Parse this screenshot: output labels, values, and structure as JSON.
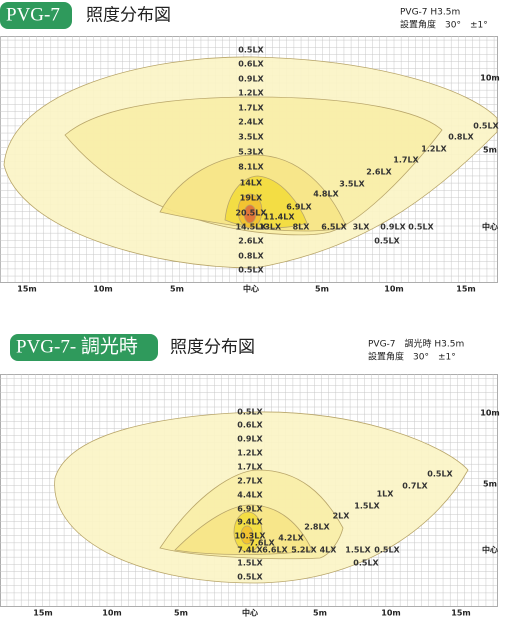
{
  "panels": [
    {
      "badge": "PVG-7",
      "title": "照度分布図",
      "spec": [
        "PVG-7 H3.5m",
        "設置角度　30°　±1°"
      ],
      "x_labels": [
        "15m",
        "10m",
        "5m",
        "中心",
        "5m",
        "10m",
        "15m"
      ],
      "y_labels": [
        "10m",
        "5m",
        "中心"
      ],
      "vertical_labels": [
        "0.5LX",
        "0.6LX",
        "0.9LX",
        "1.2LX",
        "1.7LX",
        "2.4LX",
        "3.5LX",
        "5.3LX",
        "8.1LX",
        "14LX",
        "19LX",
        "20.5LX",
        "14.5LX",
        "2.6LX",
        "0.8LX",
        "0.5LX"
      ],
      "horizontal_labels": [
        "13LX",
        "8LX",
        "6.5LX",
        "3LX",
        "0.9LX",
        "0.5LX",
        "0.5LX"
      ],
      "diagonal_labels": [
        "0.5LX",
        "0.8LX",
        "1.2LX",
        "1.7LX",
        "2.6LX",
        "3.5LX",
        "4.8LX",
        "6.9LX",
        "11.4LX"
      ]
    },
    {
      "badge": "PVG-7- 調光時",
      "title": "照度分布図",
      "spec": [
        "PVG-7　調光時 H3.5m",
        "設置角度　30°　±1°"
      ],
      "x_labels": [
        "15m",
        "10m",
        "5m",
        "中心",
        "5m",
        "10m",
        "15m"
      ],
      "y_labels": [
        "10m",
        "5m",
        "中心"
      ],
      "vertical_labels": [
        "0.5LX",
        "0.6LX",
        "0.9LX",
        "1.2LX",
        "1.7LX",
        "2.7LX",
        "4.4LX",
        "6.9LX",
        "9.4LX",
        "10.3LX",
        "7.4LX",
        "1.5LX",
        "0.5LX"
      ],
      "horizontal_labels": [
        "7.6LX",
        "6.6LX",
        "5.2LX",
        "4LX",
        "1.5LX",
        "0.5LX",
        "0.5LX"
      ],
      "diagonal_labels": [
        "0.5LX",
        "0.7LX",
        "1LX",
        "1.5LX",
        "2LX",
        "2.8LX",
        "4.2LX"
      ]
    }
  ]
}
